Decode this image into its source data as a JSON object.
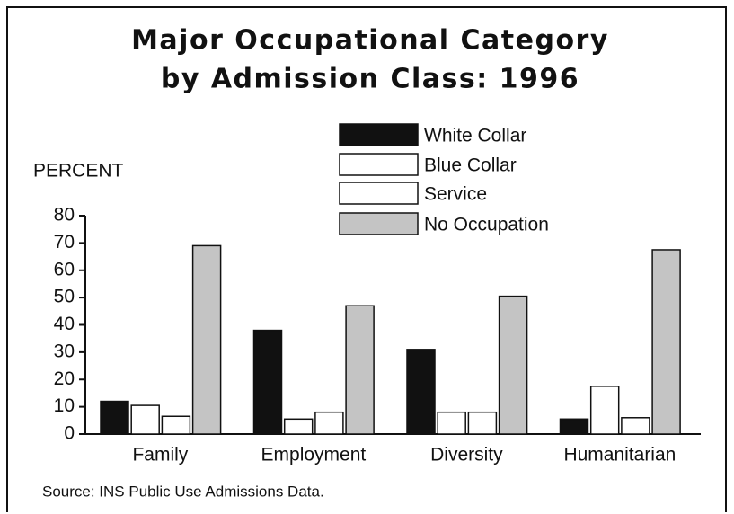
{
  "chart_data": {
    "type": "bar",
    "title": [
      "Major Occupational Category",
      "by Admission Class: 1996"
    ],
    "y_label": "PERCENT",
    "source": "Source: INS Public Use Admissions Data.",
    "categories": [
      "Family",
      "Employment",
      "Diversity",
      "Humanitarian"
    ],
    "series": [
      {
        "name": "White Collar",
        "color": "#111111",
        "values": [
          12,
          38,
          31,
          5.5
        ]
      },
      {
        "name": "Blue Collar",
        "color": "#ffffff",
        "values": [
          10.5,
          5.5,
          8,
          17.5
        ]
      },
      {
        "name": "Service",
        "color": "#ffffff",
        "values": [
          6.5,
          8,
          8,
          6
        ]
      },
      {
        "name": "No Occupation",
        "color": "#c4c4c4",
        "values": [
          69,
          47,
          50.5,
          67.5
        ]
      }
    ],
    "ylim": [
      0,
      80
    ],
    "yticks": [
      0,
      10,
      20,
      30,
      40,
      50,
      60,
      70,
      80
    ]
  }
}
